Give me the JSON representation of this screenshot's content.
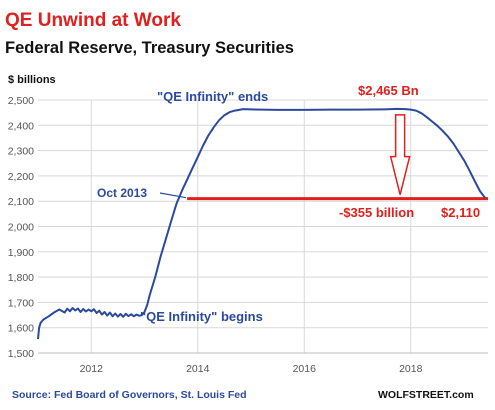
{
  "chart_data": {
    "type": "line",
    "title": "QE Unwind at Work",
    "subtitle": "Federal Reserve, Treasury Securities",
    "ylabel": "$ billions",
    "ylim": [
      1500,
      2500
    ],
    "xlim": [
      2011.0,
      2019.45
    ],
    "yticks": [
      1500,
      1600,
      1700,
      1800,
      1900,
      2000,
      2100,
      2200,
      2300,
      2400,
      2500
    ],
    "ytick_labels": [
      "1,500",
      "1,600",
      "1,700",
      "1,800",
      "1,900",
      "2,000",
      "2,100",
      "2,200",
      "2,300",
      "2,400",
      "2,500"
    ],
    "xticks": [
      2012,
      2014,
      2016,
      2018
    ],
    "xtick_labels": [
      "2012",
      "2014",
      "2016",
      "2018"
    ],
    "grid": true,
    "line_color": "#2b4a9e",
    "accent_color": "#e0201e",
    "series": [
      {
        "x": [
          2011.0,
          2011.02,
          2011.05,
          2011.1,
          2011.2,
          2011.3,
          2011.4,
          2011.5,
          2011.55,
          2011.6,
          2011.65,
          2011.7,
          2011.75,
          2011.8,
          2011.85,
          2011.9,
          2011.95,
          2012.0,
          2012.05,
          2012.1,
          2012.15,
          2012.2,
          2012.25,
          2012.3,
          2012.35,
          2012.4,
          2012.45,
          2012.5,
          2012.55,
          2012.6,
          2012.65,
          2012.7,
          2012.75,
          2012.8,
          2012.85,
          2012.9,
          2012.95,
          2013.0,
          2013.05,
          2013.1,
          2013.2,
          2013.3,
          2013.4,
          2013.5,
          2013.6,
          2013.7,
          2013.8,
          2013.9,
          2014.0,
          2014.1,
          2014.2,
          2014.3,
          2014.4,
          2014.5,
          2014.6,
          2014.7,
          2014.8,
          2014.85,
          2015.0,
          2015.5,
          2016.0,
          2016.5,
          2017.0,
          2017.5,
          2017.75,
          2017.9,
          2018.0,
          2018.1,
          2018.2,
          2018.3,
          2018.4,
          2018.5,
          2018.6,
          2018.7,
          2018.8,
          2018.9,
          2019.0,
          2019.1,
          2019.2,
          2019.3,
          2019.4
        ],
        "y": [
          1555,
          1600,
          1620,
          1632,
          1645,
          1660,
          1672,
          1660,
          1675,
          1665,
          1678,
          1668,
          1676,
          1662,
          1674,
          1664,
          1672,
          1665,
          1673,
          1658,
          1667,
          1652,
          1662,
          1648,
          1660,
          1645,
          1656,
          1644,
          1654,
          1643,
          1655,
          1646,
          1653,
          1645,
          1652,
          1647,
          1650,
          1662,
          1690,
          1730,
          1800,
          1880,
          1950,
          2020,
          2090,
          2140,
          2185,
          2230,
          2275,
          2320,
          2360,
          2392,
          2420,
          2440,
          2452,
          2458,
          2462,
          2464,
          2463,
          2461,
          2461,
          2462,
          2462,
          2463,
          2465,
          2464,
          2462,
          2458,
          2448,
          2432,
          2415,
          2398,
          2378,
          2355,
          2328,
          2295,
          2262,
          2222,
          2180,
          2140,
          2112
        ]
      }
    ],
    "reference_line": {
      "y": 2110,
      "from_x": 2013.8,
      "to_x": 2019.45
    },
    "down_arrow": {
      "x": 2017.8,
      "y_from": 2465,
      "y_to": 2110
    },
    "annotations": {
      "qe_begins": "\"QE Infinity\" begins",
      "qe_ends": "\"QE Infinity\" ends",
      "oct_2013": "Oct 2013",
      "peak_value": "$2,465 Bn",
      "decline": "-$355 billion",
      "current_value": "$2,110"
    },
    "source": "Source: Fed Board of Governors, St. Louis Fed",
    "brand": "WOLFSTREET.com"
  }
}
